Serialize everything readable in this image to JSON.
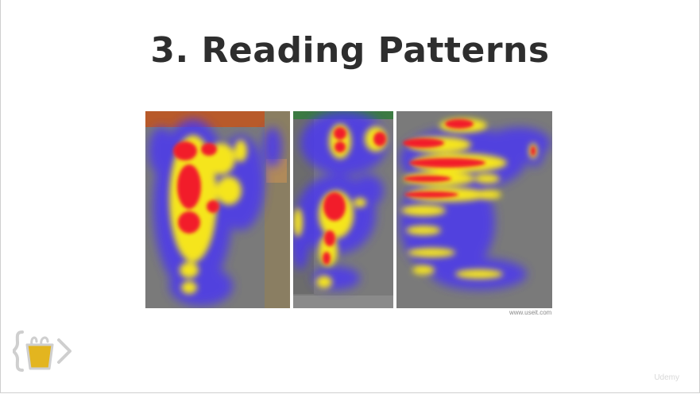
{
  "slide": {
    "title": "3. Reading Patterns",
    "image_source": "www.useit.com",
    "watermark": "Udemy"
  },
  "heatmap": {
    "panels": [
      "article-page",
      "product-page",
      "search-results-page"
    ],
    "colors": {
      "background": "#7a7a7a",
      "cool": "#4b38f0",
      "warm": "#f5e51e",
      "hot": "#f21a2c"
    }
  },
  "logo": {
    "icon": "curly-braces-bag-logo",
    "colors": {
      "outline": "#cfcfcf",
      "fill": "#e3b51f"
    }
  }
}
